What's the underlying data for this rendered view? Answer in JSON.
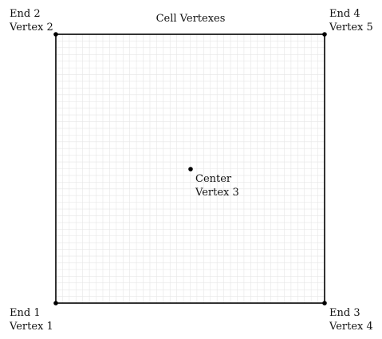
{
  "title": "Cell Vertexes",
  "colors": {
    "border": "#000000",
    "grid": "#e6e6e6",
    "point": "#000000",
    "text": "#111111"
  },
  "vertices": [
    {
      "id": "end-1",
      "end_label": "End 1",
      "vertex_label": "Vertex 1"
    },
    {
      "id": "end-2",
      "end_label": "End 2",
      "vertex_label": "Vertex 2"
    },
    {
      "id": "center",
      "end_label": "Center",
      "vertex_label": "Vertex 3"
    },
    {
      "id": "end-3",
      "end_label": "End 3",
      "vertex_label": "Vertex 4"
    },
    {
      "id": "end-4",
      "end_label": "End 4",
      "vertex_label": "Vertex 5"
    }
  ]
}
